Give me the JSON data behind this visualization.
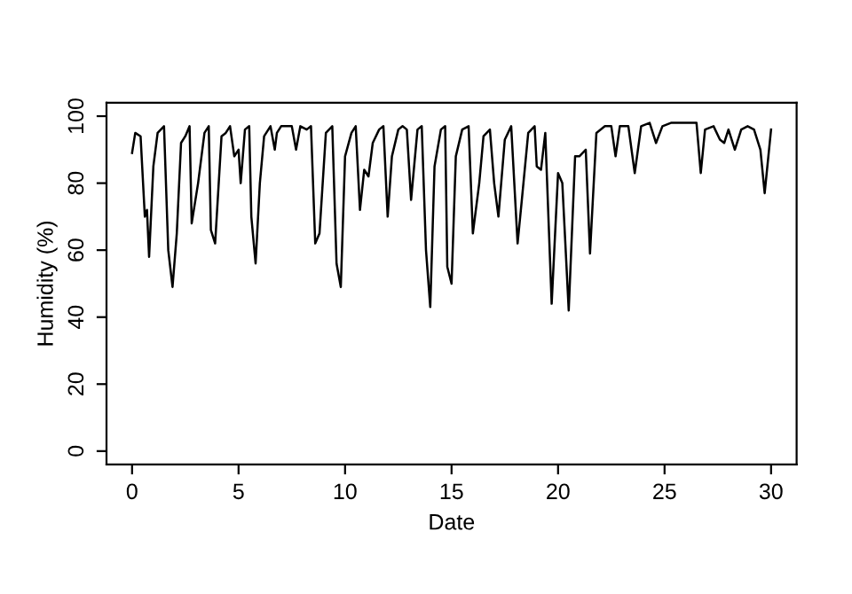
{
  "chart_data": {
    "type": "line",
    "xlabel": "Date",
    "ylabel": "Humidity (%)",
    "xlim": [
      -1.2,
      31.2
    ],
    "ylim": [
      -4,
      104
    ],
    "xticks": [
      0,
      5,
      10,
      15,
      20,
      25,
      30
    ],
    "yticks": [
      0,
      20,
      40,
      60,
      80,
      100
    ],
    "grid": false,
    "legend": false,
    "marker": "none",
    "line_style": "solid",
    "series": [
      {
        "color": "#000000",
        "x": [
          0,
          0.15,
          0.4,
          0.6,
          0.7,
          0.8,
          1.0,
          1.2,
          1.5,
          1.7,
          1.9,
          2.1,
          2.3,
          2.5,
          2.7,
          2.8,
          3.1,
          3.4,
          3.6,
          3.7,
          3.9,
          4.2,
          4.4,
          4.6,
          4.8,
          5.0,
          5.1,
          5.3,
          5.5,
          5.6,
          5.8,
          6.0,
          6.2,
          6.5,
          6.7,
          6.8,
          7.0,
          7.5,
          7.7,
          7.9,
          8.2,
          8.4,
          8.6,
          8.8,
          9.1,
          9.4,
          9.6,
          9.8,
          10.0,
          10.3,
          10.5,
          10.7,
          10.9,
          11.1,
          11.3,
          11.6,
          11.8,
          12.0,
          12.2,
          12.5,
          12.7,
          12.9,
          13.1,
          13.4,
          13.6,
          13.8,
          14.0,
          14.2,
          14.5,
          14.7,
          14.8,
          15.0,
          15.2,
          15.5,
          15.8,
          16.0,
          16.3,
          16.5,
          16.8,
          17.0,
          17.2,
          17.5,
          17.8,
          18.1,
          18.3,
          18.6,
          18.9,
          19.0,
          19.2,
          19.4,
          19.7,
          20.0,
          20.2,
          20.5,
          20.8,
          21.0,
          21.3,
          21.5,
          21.8,
          22.2,
          22.5,
          22.7,
          22.9,
          23.3,
          23.6,
          23.9,
          24.3,
          24.6,
          24.9,
          25.3,
          25.7,
          26.1,
          26.5,
          26.7,
          26.9,
          27.3,
          27.6,
          27.8,
          28.0,
          28.3,
          28.6,
          28.9,
          29.2,
          29.5,
          29.7,
          30.0
        ],
        "values": [
          89,
          95,
          94,
          70,
          72,
          58,
          85,
          95,
          97,
          60,
          49,
          65,
          92,
          94,
          97,
          68,
          80,
          95,
          97,
          66,
          62,
          94,
          95,
          97,
          88,
          90,
          80,
          96,
          97,
          70,
          56,
          80,
          94,
          97,
          90,
          95,
          97,
          97,
          90,
          97,
          96,
          97,
          62,
          65,
          95,
          97,
          56,
          49,
          88,
          95,
          97,
          72,
          84,
          82,
          92,
          96,
          97,
          70,
          88,
          96,
          97,
          96,
          75,
          96,
          97,
          60,
          43,
          85,
          96,
          97,
          55,
          50,
          88,
          96,
          97,
          65,
          80,
          94,
          96,
          80,
          70,
          93,
          97,
          62,
          75,
          95,
          97,
          85,
          84,
          95,
          44,
          83,
          80,
          42,
          88,
          88,
          90,
          59,
          95,
          97,
          97,
          88,
          97,
          97,
          83,
          97,
          98,
          92,
          97,
          98,
          98,
          98,
          98,
          83,
          96,
          97,
          93,
          92,
          96,
          90,
          96,
          97,
          96,
          90,
          77,
          96
        ]
      }
    ]
  }
}
